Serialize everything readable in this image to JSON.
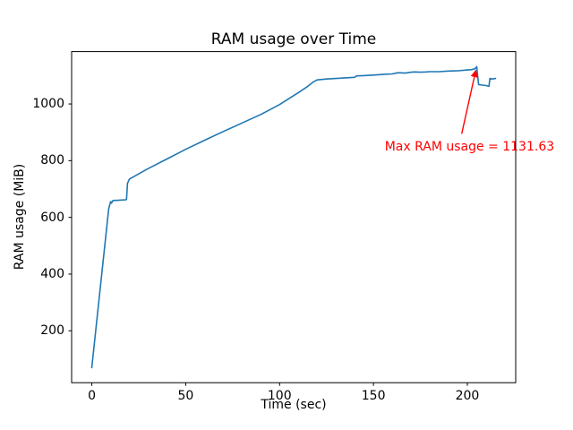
{
  "chart_data": {
    "type": "line",
    "title": "RAM usage over Time",
    "xlabel": "Time (sec)",
    "ylabel": "RAM usage (MiB)",
    "xlim": [
      -10.75,
      225.75
    ],
    "ylim": [
      16.9,
      1184.7
    ],
    "xticks": [
      0,
      50,
      100,
      150,
      200
    ],
    "yticks": [
      200,
      400,
      600,
      800,
      1000
    ],
    "grid": false,
    "line_color": "#1f77b4",
    "points": [
      [
        0,
        70
      ],
      [
        9,
        630
      ],
      [
        10,
        655
      ],
      [
        10.5,
        650
      ],
      [
        11,
        658
      ],
      [
        12,
        660
      ],
      [
        13,
        660
      ],
      [
        18,
        662
      ],
      [
        18.5,
        663
      ],
      [
        19,
        720
      ],
      [
        20,
        735
      ],
      [
        30,
        772
      ],
      [
        40,
        806
      ],
      [
        50,
        840
      ],
      [
        60,
        872
      ],
      [
        70,
        903
      ],
      [
        80,
        933
      ],
      [
        90,
        963
      ],
      [
        100,
        998
      ],
      [
        110,
        1040
      ],
      [
        115,
        1062
      ],
      [
        118,
        1078
      ],
      [
        120,
        1085
      ],
      [
        125,
        1088
      ],
      [
        130,
        1090
      ],
      [
        135,
        1092
      ],
      [
        140,
        1094
      ],
      [
        141,
        1099
      ],
      [
        145,
        1100
      ],
      [
        150,
        1102
      ],
      [
        155,
        1104
      ],
      [
        160,
        1106
      ],
      [
        163,
        1110
      ],
      [
        167,
        1109
      ],
      [
        170,
        1112
      ],
      [
        172,
        1113
      ],
      [
        175,
        1112
      ],
      [
        178,
        1113
      ],
      [
        180,
        1114
      ],
      [
        185,
        1114
      ],
      [
        190,
        1116
      ],
      [
        195,
        1117
      ],
      [
        200,
        1120
      ],
      [
        202,
        1121
      ],
      [
        204,
        1124
      ],
      [
        205,
        1131.63
      ],
      [
        205.5,
        1100
      ],
      [
        206,
        1068
      ],
      [
        210,
        1065
      ],
      [
        211,
        1063
      ],
      [
        211.5,
        1062
      ],
      [
        212,
        1090
      ],
      [
        213,
        1088
      ],
      [
        215,
        1090
      ]
    ],
    "annotation": {
      "text": "Max RAM usage = 1131.63",
      "color": "#ff0000",
      "arrow_tip_xy": [
        205,
        1131.63
      ],
      "arrow_start_xy": [
        197,
        895
      ],
      "text_xy": [
        156,
        850
      ]
    }
  }
}
